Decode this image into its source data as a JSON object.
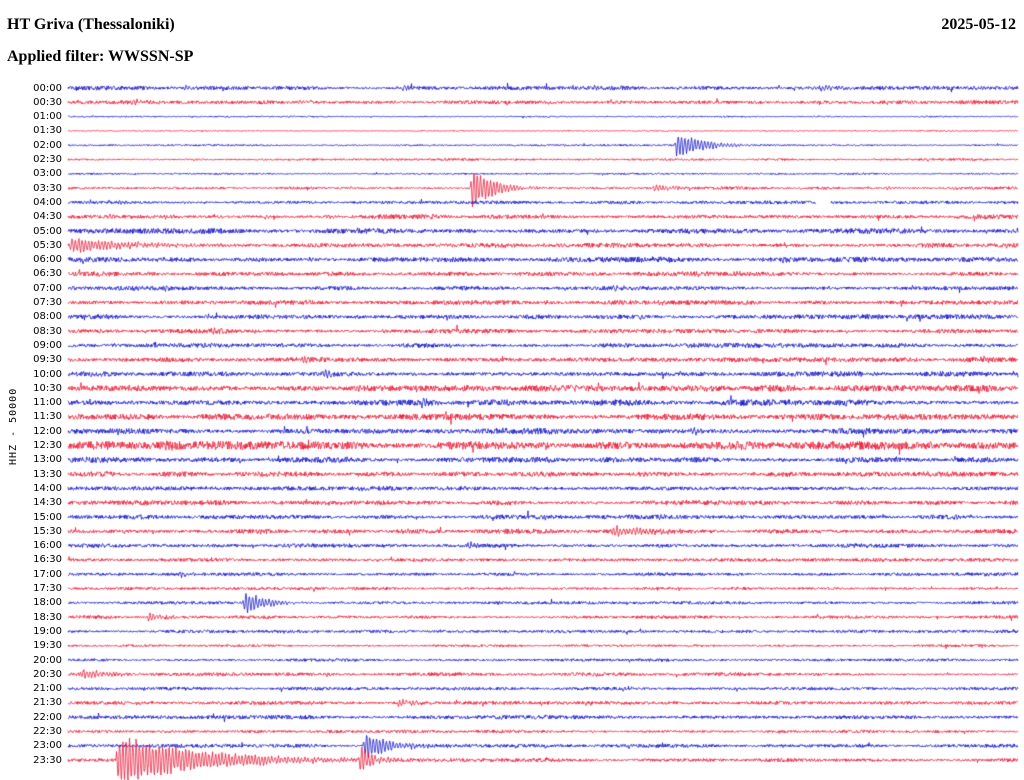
{
  "header": {
    "station_title": "HT Griva (Thessaloniki)",
    "date": "2025-05-12",
    "filter_label": "Applied filter: WWSSN-SP"
  },
  "y_axis_label": "HHZ - 50000",
  "colors": {
    "blue": "#0b0bc6",
    "red": "#e8102e"
  },
  "chart_data": {
    "type": "line",
    "title": "Helicorder day plot HT Griva (Thessaloniki) 2025-05-12",
    "channel": "HHZ",
    "amplitude_scale": "50000",
    "minutes_per_row": 30,
    "row_start_times_note": "each row = 30 minutes, colors alternate blue/red; ev = [position 0-1 along row, amplitude px, decay px]",
    "rows": [
      {
        "t": "00:00",
        "c": "blue",
        "n": 1.6,
        "ev": [
          [
            0.12,
            3,
            10
          ],
          [
            0.35,
            2.5,
            8
          ],
          [
            0.55,
            2,
            8
          ],
          [
            0.79,
            3.5,
            14
          ],
          [
            0.95,
            2.5,
            8
          ]
        ]
      },
      {
        "t": "00:30",
        "c": "red",
        "n": 1.6,
        "ev": [
          [
            0.065,
            4,
            12
          ],
          [
            0.24,
            3,
            8
          ],
          [
            0.34,
            2.5,
            8
          ],
          [
            0.5,
            2,
            6
          ],
          [
            0.63,
            2,
            6
          ],
          [
            0.86,
            2,
            6
          ]
        ]
      },
      {
        "t": "01:00",
        "c": "blue",
        "n": 0.6,
        "ev": [
          [
            0.23,
            1.5,
            5
          ],
          [
            0.3,
            1.2,
            5
          ]
        ]
      },
      {
        "t": "01:30",
        "c": "red",
        "n": 0.5,
        "ev": []
      },
      {
        "t": "02:00",
        "c": "blue",
        "n": 0.7,
        "ev": [
          [
            0.52,
            1.5,
            4
          ],
          [
            0.638,
            16,
            26
          ]
        ]
      },
      {
        "t": "02:30",
        "c": "red",
        "n": 0.9,
        "ev": [
          [
            0.13,
            2,
            6
          ],
          [
            0.2,
            1.8,
            5
          ],
          [
            0.33,
            1.5,
            5
          ]
        ]
      },
      {
        "t": "03:00",
        "c": "blue",
        "n": 0.7,
        "ev": [
          [
            0.27,
            2,
            4
          ],
          [
            0.83,
            2,
            4
          ]
        ]
      },
      {
        "t": "03:30",
        "c": "red",
        "n": 1.2,
        "ev": [
          [
            0.423,
            26,
            20
          ],
          [
            0.615,
            5,
            18
          ],
          [
            0.86,
            3,
            8
          ],
          [
            0.93,
            2.5,
            6
          ]
        ]
      },
      {
        "t": "04:00",
        "c": "blue",
        "n": 1.4,
        "ev": [
          [
            0.05,
            2.5,
            6
          ],
          [
            0.12,
            2,
            6
          ],
          [
            0.2,
            2,
            6
          ],
          [
            0.55,
            2,
            5
          ]
        ],
        "gap": [
          [
            0.787,
            0.803
          ]
        ]
      },
      {
        "t": "04:30",
        "c": "red",
        "n": 1.8,
        "ev": [
          [
            0.04,
            3,
            8
          ],
          [
            0.1,
            3,
            8
          ],
          [
            0.16,
            2.5,
            6
          ],
          [
            0.205,
            3,
            6
          ],
          [
            0.27,
            3.5,
            8
          ],
          [
            0.38,
            2,
            5
          ]
        ]
      },
      {
        "t": "05:00",
        "c": "blue",
        "n": 2.0,
        "ev": [
          [
            0.3,
            3,
            6
          ],
          [
            0.55,
            2.5,
            6
          ],
          [
            0.9,
            3,
            6
          ],
          [
            0.998,
            13,
            8
          ]
        ]
      },
      {
        "t": "05:30",
        "c": "red",
        "n": 1.8,
        "ev": [
          [
            0.0,
            8,
            60
          ],
          [
            0.5,
            3,
            6
          ],
          [
            0.75,
            3,
            6
          ],
          [
            0.9,
            3,
            6
          ]
        ]
      },
      {
        "t": "06:00",
        "c": "blue",
        "n": 2.2,
        "ev": [
          [
            0.1,
            3,
            6
          ],
          [
            0.25,
            3.5,
            8
          ],
          [
            0.5,
            3,
            6
          ],
          [
            0.75,
            3,
            6
          ]
        ]
      },
      {
        "t": "06:30",
        "c": "red",
        "n": 1.8,
        "ev": [
          [
            0.2,
            3,
            6
          ],
          [
            0.45,
            2.5,
            6
          ],
          [
            0.7,
            2.5,
            6
          ]
        ]
      },
      {
        "t": "07:00",
        "c": "blue",
        "n": 1.8,
        "ev": [
          [
            0.1,
            3,
            6
          ],
          [
            0.57,
            4,
            8
          ],
          [
            0.8,
            3,
            6
          ]
        ]
      },
      {
        "t": "07:30",
        "c": "red",
        "n": 1.8,
        "ev": [
          [
            0.25,
            3,
            6
          ],
          [
            0.5,
            2.5,
            6
          ],
          [
            0.62,
            3,
            6
          ]
        ]
      },
      {
        "t": "08:00",
        "c": "blue",
        "n": 1.8,
        "ev": [
          [
            0.3,
            2.5,
            5
          ],
          [
            0.6,
            2.5,
            5
          ],
          [
            0.85,
            2.5,
            5
          ]
        ]
      },
      {
        "t": "08:30",
        "c": "red",
        "n": 1.8,
        "ev": [
          [
            0.15,
            5,
            5
          ],
          [
            0.33,
            2.5,
            5
          ],
          [
            0.55,
            2.5,
            5
          ]
        ]
      },
      {
        "t": "09:00",
        "c": "blue",
        "n": 1.8,
        "ev": [
          [
            0.14,
            4,
            5
          ],
          [
            0.4,
            2.5,
            5
          ],
          [
            0.75,
            2.5,
            5
          ]
        ]
      },
      {
        "t": "09:30",
        "c": "red",
        "n": 2.0,
        "ev": [
          [
            0.245,
            6,
            5
          ],
          [
            0.5,
            2.5,
            5
          ],
          [
            0.96,
            5,
            5
          ]
        ]
      },
      {
        "t": "10:00",
        "c": "blue",
        "n": 2.0,
        "ev": [
          [
            0.267,
            9,
            6
          ],
          [
            0.36,
            3,
            5
          ],
          [
            0.64,
            3,
            5
          ]
        ]
      },
      {
        "t": "10:30",
        "c": "red",
        "n": 2.4,
        "ev": [
          [
            0.06,
            3,
            6
          ],
          [
            0.3,
            3,
            6
          ],
          [
            0.56,
            3,
            6
          ],
          [
            0.8,
            3,
            6
          ]
        ]
      },
      {
        "t": "11:00",
        "c": "blue",
        "n": 2.4,
        "ev": [
          [
            0.37,
            6,
            8
          ],
          [
            0.65,
            3,
            5
          ],
          [
            0.97,
            4,
            5
          ]
        ]
      },
      {
        "t": "11:30",
        "c": "red",
        "n": 2.4,
        "ev": [
          [
            0.05,
            4,
            6
          ],
          [
            0.3,
            3,
            6
          ],
          [
            0.55,
            3,
            6
          ],
          [
            0.75,
            3,
            6
          ]
        ]
      },
      {
        "t": "12:00",
        "c": "blue",
        "n": 2.4,
        "ev": [
          [
            0.2,
            3,
            6
          ],
          [
            0.45,
            3,
            6
          ],
          [
            0.655,
            5,
            10
          ]
        ]
      },
      {
        "t": "12:30",
        "c": "red",
        "n": 3.2,
        "ev": [
          [
            0.1,
            4,
            8
          ],
          [
            0.3,
            4,
            8
          ],
          [
            0.5,
            4,
            8
          ],
          [
            0.7,
            4,
            8
          ],
          [
            0.9,
            4,
            8
          ]
        ]
      },
      {
        "t": "13:00",
        "c": "blue",
        "n": 2.2,
        "ev": [
          [
            0.21,
            5,
            5
          ],
          [
            0.5,
            3,
            5
          ],
          [
            0.75,
            3,
            5
          ]
        ]
      },
      {
        "t": "13:30",
        "c": "red",
        "n": 2.0,
        "ev": [
          [
            0.3,
            3,
            6
          ],
          [
            0.6,
            3,
            6
          ]
        ]
      },
      {
        "t": "14:00",
        "c": "blue",
        "n": 1.8,
        "ev": [
          [
            0.3,
            3.5,
            6
          ],
          [
            0.55,
            2.5,
            5
          ]
        ]
      },
      {
        "t": "14:30",
        "c": "red",
        "n": 1.8,
        "ev": [
          [
            0.2,
            3,
            5
          ],
          [
            0.65,
            2.5,
            5
          ]
        ]
      },
      {
        "t": "15:00",
        "c": "blue",
        "n": 1.8,
        "ev": [
          [
            0.5,
            3,
            5
          ],
          [
            0.62,
            4,
            6
          ],
          [
            0.93,
            4,
            5
          ]
        ]
      },
      {
        "t": "15:30",
        "c": "red",
        "n": 1.8,
        "ev": [
          [
            0.2,
            3,
            5
          ],
          [
            0.35,
            3,
            5
          ],
          [
            0.57,
            5,
            45
          ]
        ]
      },
      {
        "t": "16:00",
        "c": "blue",
        "n": 1.6,
        "ev": [
          [
            0.33,
            3,
            5
          ],
          [
            0.42,
            7,
            6
          ],
          [
            0.62,
            3,
            5
          ]
        ]
      },
      {
        "t": "16:30",
        "c": "red",
        "n": 1.4,
        "ev": [
          [
            0.155,
            3,
            5
          ],
          [
            0.5,
            2.5,
            5
          ]
        ]
      },
      {
        "t": "17:00",
        "c": "blue",
        "n": 1.4,
        "ev": [
          [
            0.117,
            6,
            5
          ],
          [
            0.6,
            3,
            5
          ]
        ]
      },
      {
        "t": "17:30",
        "c": "red",
        "n": 1.2,
        "ev": [
          [
            0.3,
            2,
            4
          ],
          [
            0.7,
            2,
            4
          ]
        ]
      },
      {
        "t": "18:00",
        "c": "blue",
        "n": 1.2,
        "ev": [
          [
            0.183,
            13,
            22
          ],
          [
            0.45,
            2,
            4
          ]
        ]
      },
      {
        "t": "18:30",
        "c": "red",
        "n": 1.3,
        "ev": [
          [
            0.082,
            6,
            14
          ],
          [
            0.35,
            2,
            4
          ]
        ]
      },
      {
        "t": "19:00",
        "c": "blue",
        "n": 1.3,
        "ev": [
          [
            0.4,
            2,
            4
          ],
          [
            0.65,
            2,
            4
          ]
        ]
      },
      {
        "t": "19:30",
        "c": "red",
        "n": 1.0,
        "ev": [
          [
            0.5,
            1.5,
            4
          ]
        ]
      },
      {
        "t": "20:00",
        "c": "blue",
        "n": 1.2,
        "ev": [
          [
            0.06,
            2.5,
            5
          ],
          [
            0.3,
            2,
            4
          ]
        ]
      },
      {
        "t": "20:30",
        "c": "red",
        "n": 1.4,
        "ev": [
          [
            0.012,
            7,
            22
          ],
          [
            0.27,
            3,
            5
          ],
          [
            0.55,
            2.5,
            5
          ]
        ]
      },
      {
        "t": "21:00",
        "c": "blue",
        "n": 1.3,
        "ev": [
          [
            0.2,
            2,
            4
          ],
          [
            0.582,
            5,
            5
          ]
        ]
      },
      {
        "t": "21:30",
        "c": "red",
        "n": 1.5,
        "ev": [
          [
            0.07,
            3,
            5
          ],
          [
            0.345,
            5,
            14
          ]
        ]
      },
      {
        "t": "22:00",
        "c": "blue",
        "n": 1.5,
        "ev": [
          [
            0.3,
            2,
            4
          ],
          [
            0.6,
            2,
            4
          ],
          [
            0.9,
            2,
            4
          ]
        ]
      },
      {
        "t": "22:30",
        "c": "red",
        "n": 1.3,
        "ev": [
          [
            0.25,
            2,
            4
          ],
          [
            0.55,
            2,
            4
          ]
        ]
      },
      {
        "t": "23:00",
        "c": "blue",
        "n": 1.5,
        "ev": [
          [
            0.31,
            16,
            26
          ],
          [
            0.5,
            3,
            6
          ],
          [
            0.75,
            2.5,
            5
          ]
        ]
      },
      {
        "t": "23:30",
        "c": "red",
        "n": 1.5,
        "ev": [
          [
            0.05,
            28,
            80
          ],
          [
            0.305,
            20,
            12
          ]
        ]
      }
    ]
  }
}
